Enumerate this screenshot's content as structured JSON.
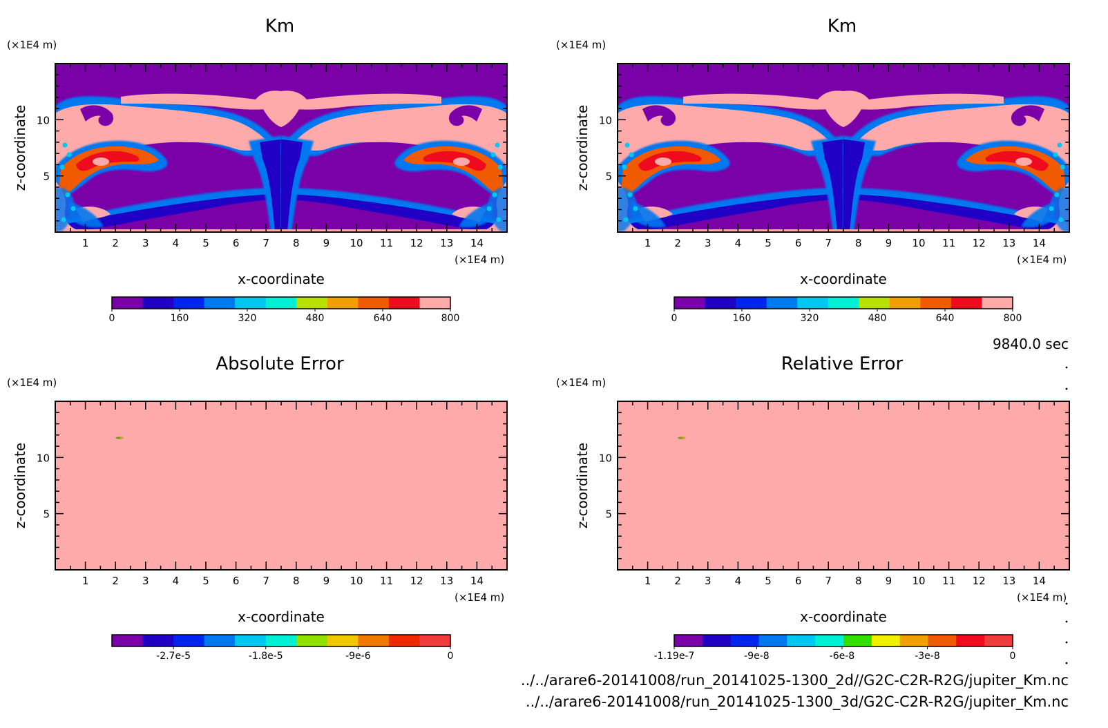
{
  "page": {
    "time_label": "9840.0 sec",
    "file_a": "../../arare6-20141008/run_20141025-1300_2d//G2C-C2R-R2G/jupiter_Km.nc",
    "file_b": "../../arare6-20141008/run_20141025-1300_3d/G2C-C2R-R2G/jupiter_Km.nc"
  },
  "colors": {
    "km_levels": [
      "#7a00a8",
      "#1f00c4",
      "#0025f0",
      "#0078f0",
      "#00c8f0",
      "#00f0d6",
      "#b8e000",
      "#f0a000",
      "#f05a00",
      "#f00a1e",
      "#ffaaaa"
    ],
    "abs_levels": [
      "#7a00a8",
      "#1f00c4",
      "#0025f0",
      "#0078f0",
      "#00c8f0",
      "#00f0d6",
      "#90e000",
      "#f0c800",
      "#f07800",
      "#f02800",
      "#f03c3c"
    ],
    "rel_levels": [
      "#7a00a8",
      "#1f00c4",
      "#0025f0",
      "#0078f0",
      "#00c8f0",
      "#00f0d6",
      "#32e000",
      "#f0f000",
      "#f0a000",
      "#f05a00",
      "#f00a1e",
      "#f03c3c"
    ],
    "error_fill": "#ffaaaa"
  },
  "chart_data": [
    {
      "type": "heatmap",
      "title": "Km",
      "xlabel": "x-coordinate",
      "ylabel": "z-coordinate",
      "x_unit": "(×1E4 m)",
      "y_unit": "(×1E4 m)",
      "xlim": [
        0,
        15
      ],
      "ylim": [
        0,
        15
      ],
      "xticks": [
        "1",
        "2",
        "3",
        "4",
        "5",
        "6",
        "7",
        "8",
        "9",
        "10",
        "11",
        "12",
        "13",
        "14"
      ],
      "yticks": [
        "5",
        "10"
      ],
      "colorbar": {
        "min": 0,
        "max": 800,
        "ticks": [
          "0",
          "160",
          "320",
          "480",
          "640",
          "800"
        ]
      }
    },
    {
      "type": "heatmap",
      "title": "Km",
      "xlabel": "x-coordinate",
      "ylabel": "z-coordinate",
      "x_unit": "(×1E4 m)",
      "y_unit": "(×1E4 m)",
      "xlim": [
        0,
        15
      ],
      "ylim": [
        0,
        15
      ],
      "xticks": [
        "1",
        "2",
        "3",
        "4",
        "5",
        "6",
        "7",
        "8",
        "9",
        "10",
        "11",
        "12",
        "13",
        "14"
      ],
      "yticks": [
        "5",
        "10"
      ],
      "colorbar": {
        "min": 0,
        "max": 800,
        "ticks": [
          "0",
          "160",
          "320",
          "480",
          "640",
          "800"
        ]
      }
    },
    {
      "type": "heatmap",
      "title": "Absolute Error",
      "xlabel": "x-coordinate",
      "ylabel": "z-coordinate",
      "x_unit": "(×1E4 m)",
      "y_unit": "(×1E4 m)",
      "xlim": [
        0,
        15
      ],
      "ylim": [
        0,
        15
      ],
      "xticks": [
        "1",
        "2",
        "3",
        "4",
        "5",
        "6",
        "7",
        "8",
        "9",
        "10",
        "11",
        "12",
        "13",
        "14"
      ],
      "yticks": [
        "5",
        "10"
      ],
      "field_value": 0,
      "colorbar": {
        "min": -3.3e-05,
        "max": 0,
        "ticks": [
          "-2.7e-5",
          "-1.8e-5",
          "-9e-6",
          "0"
        ]
      }
    },
    {
      "type": "heatmap",
      "title": "Relative Error",
      "xlabel": "x-coordinate",
      "ylabel": "z-coordinate",
      "x_unit": "(×1E4 m)",
      "y_unit": "(×1E4 m)",
      "xlim": [
        0,
        15
      ],
      "ylim": [
        0,
        15
      ],
      "xticks": [
        "1",
        "2",
        "3",
        "4",
        "5",
        "6",
        "7",
        "8",
        "9",
        "10",
        "11",
        "12",
        "13",
        "14"
      ],
      "yticks": [
        "5",
        "10"
      ],
      "field_value": 0,
      "colorbar": {
        "min": -1.19e-07,
        "max": 0,
        "ticks": [
          "-1.19e-7",
          "-9e-8",
          "-6e-8",
          "-3e-8",
          "0"
        ]
      }
    }
  ]
}
